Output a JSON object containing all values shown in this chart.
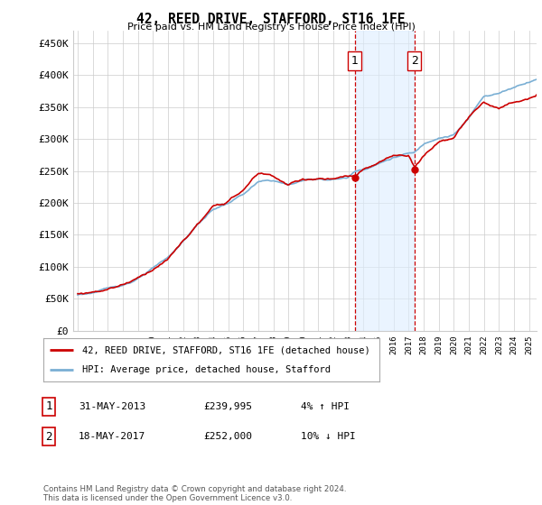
{
  "title": "42, REED DRIVE, STAFFORD, ST16 1FE",
  "subtitle": "Price paid vs. HM Land Registry's House Price Index (HPI)",
  "ylabel_ticks": [
    "£0",
    "£50K",
    "£100K",
    "£150K",
    "£200K",
    "£250K",
    "£300K",
    "£350K",
    "£400K",
    "£450K"
  ],
  "ytick_values": [
    0,
    50000,
    100000,
    150000,
    200000,
    250000,
    300000,
    350000,
    400000,
    450000
  ],
  "ylim": [
    0,
    470000
  ],
  "xlim_start": 1994.7,
  "xlim_end": 2025.5,
  "hpi_color": "#7aafd4",
  "price_color": "#cc0000",
  "marker1_x": 2013.42,
  "marker1_y": 239995,
  "marker2_x": 2017.38,
  "marker2_y": 252000,
  "legend_label1": "42, REED DRIVE, STAFFORD, ST16 1FE (detached house)",
  "legend_label2": "HPI: Average price, detached house, Stafford",
  "table_row1_num": "1",
  "table_row1_date": "31-MAY-2013",
  "table_row1_price": "£239,995",
  "table_row1_hpi": "4% ↑ HPI",
  "table_row2_num": "2",
  "table_row2_date": "18-MAY-2017",
  "table_row2_price": "£252,000",
  "table_row2_hpi": "10% ↓ HPI",
  "footer": "Contains HM Land Registry data © Crown copyright and database right 2024.\nThis data is licensed under the Open Government Licence v3.0.",
  "shaded_color": "#ddeeff",
  "dashed_color": "#cc0000",
  "background_color": "#ffffff",
  "grid_color": "#cccccc"
}
